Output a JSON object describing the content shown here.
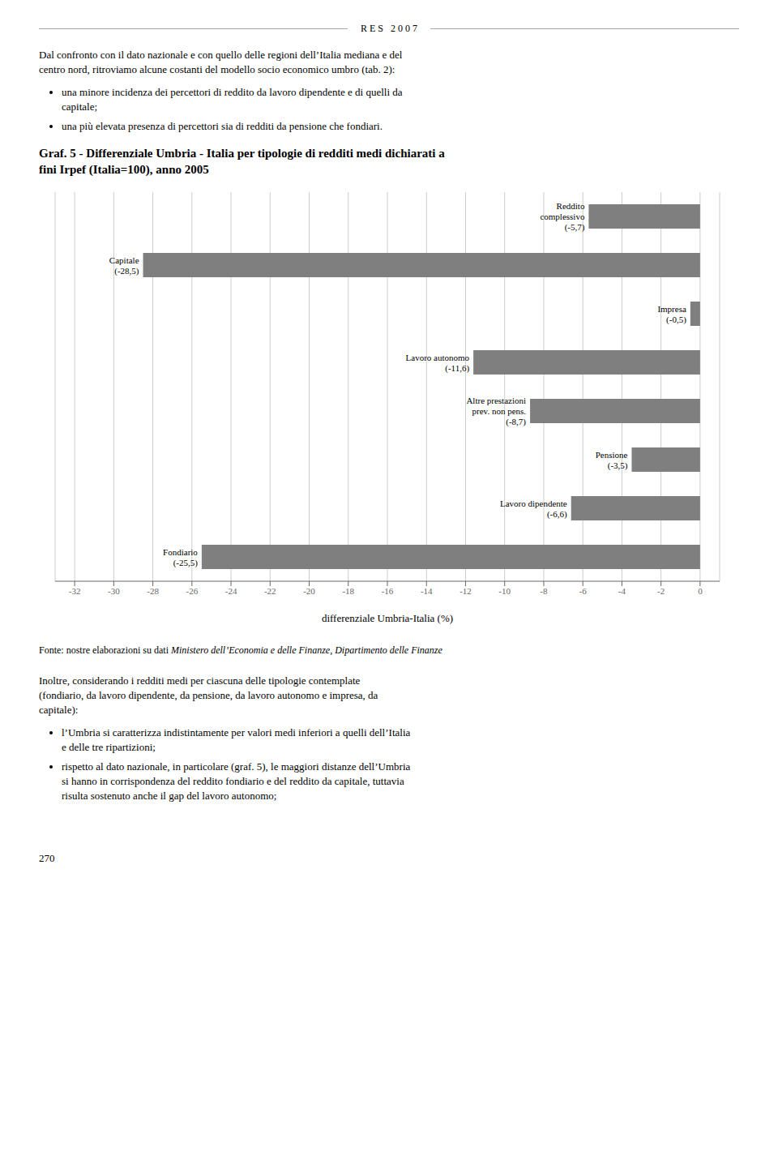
{
  "chart_data": {
    "type": "bar",
    "orientation": "horizontal",
    "title": "Graf. 5 - Differenziale Umbria - Italia per tipologie di redditi medi dichiarati a\nfini Irpef (Italia=100), anno 2005",
    "categories": [
      "Reddito\ncomplessivo\n(-5,7)",
      "Capitale\n(-28,5)",
      "Impresa\n(-0,5)",
      "Lavoro autonomo\n(-11,6)",
      "Altre prestazioni\nprev. non pens.\n(-8,7)",
      "Pensione\n(-3,5)",
      "Lavoro dipendente\n(-6,6)",
      "Fondiario\n(-25,5)"
    ],
    "values": [
      -5.7,
      -28.5,
      -0.5,
      -11.6,
      -8.7,
      -3.5,
      -6.6,
      -25.5
    ],
    "color": "#7f7f7f",
    "xlabel": "differenziale Umbria-Italia (%)",
    "xlim": [
      -33,
      1
    ],
    "xticks": [
      -32,
      -30,
      -28,
      -26,
      -24,
      -22,
      -20,
      -18,
      -16,
      -14,
      -12,
      -10,
      -8,
      -6,
      -4,
      -2,
      0
    ],
    "grid": true,
    "tick_labels": "x",
    "annotations": [
      "R E S   2 0 0 7",
      "Dal confronto con il dato nazionale e con quello delle regioni dell’Italia mediana e del\ncentro nord, ritroviamo alcune costanti del modello socio economico umbro (tab. 2):",
      "una minore incidenza dei percettori di reddito da lavoro dipendente e di quelli da\ncapitale;",
      "una più elevata presenza di percettori sia di redditi da pensione che fondiari.",
      "Fonte: nostre elaborazioni su dati ",
      "Ministero dell’Economia e delle Finanze, Dipartimento delle Finanze",
      "Inoltre, considerando i redditi medi per ciascuna delle tipologie contemplate\n(fondiario, da lavoro dipendente, da pensione, da lavoro autonomo e impresa, da\ncapitale):",
      "l’Umbria si caratterizza indistintamente per valori medi inferiori a quelli dell’Italia\ne delle tre ripartizioni;",
      "rispetto al dato nazionale, in particolare (graf. 5), le maggiori distanze dell’Umbria\nsi hanno in corrispondenza del reddito fondiario e del reddito da capitale, tuttavia\nrisulta sostenuto anche il gap del lavoro autonomo;",
      "270"
    ]
  }
}
